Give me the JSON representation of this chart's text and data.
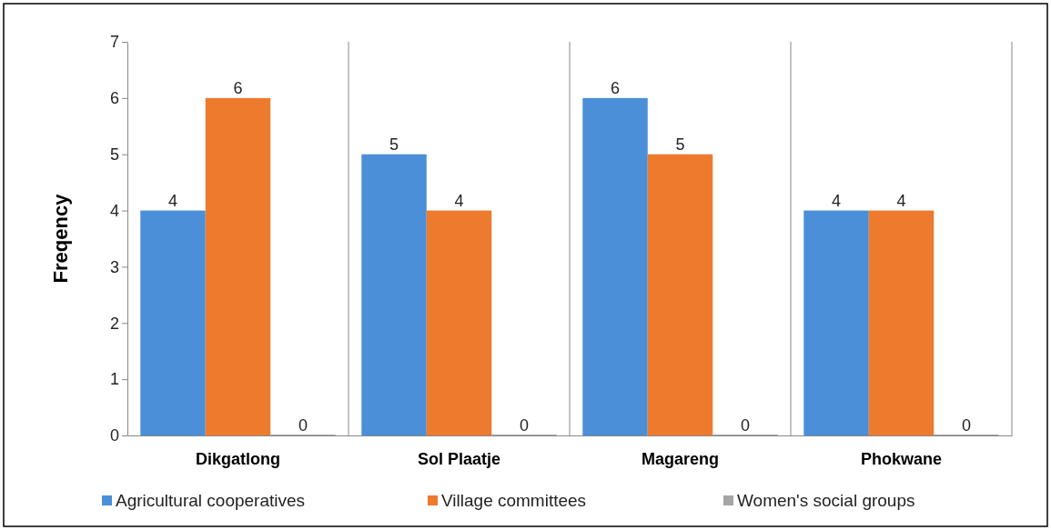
{
  "chart_data": {
    "type": "bar",
    "ylabel": "Freqency",
    "categories": [
      "Dikgatlong",
      "Sol Plaatje",
      "Magareng",
      "Phokwane"
    ],
    "series": [
      {
        "name": "Agricultural cooperatives",
        "color": "#4a8fd8",
        "values": [
          4,
          5,
          6,
          4
        ]
      },
      {
        "name": "Village committees",
        "color": "#ee7a2e",
        "values": [
          6,
          4,
          5,
          4
        ]
      },
      {
        "name": "Women's social groups",
        "color": "#a5a5a5",
        "values": [
          0,
          0,
          0,
          0
        ]
      }
    ],
    "ylim": [
      0,
      7
    ],
    "yticks": [
      0,
      1,
      2,
      3,
      4,
      5,
      6,
      7
    ],
    "grid": "x",
    "data_labels": true,
    "legend": "bottom"
  }
}
